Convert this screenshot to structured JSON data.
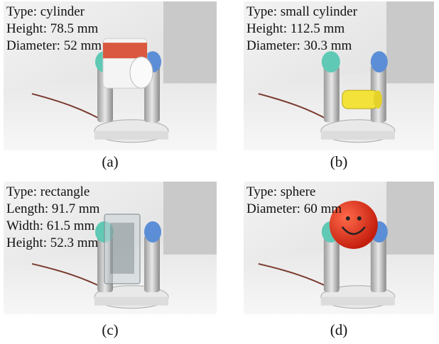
{
  "panels": [
    {
      "label": "(a)",
      "lines": [
        "Type: cylinder",
        "Height: 78.5 mm",
        "Diameter: 52 mm"
      ]
    },
    {
      "label": "(b)",
      "lines": [
        "Type: small cylinder",
        "Height: 112.5 mm",
        "Diameter: 30.3 mm"
      ]
    },
    {
      "label": "(c)",
      "lines": [
        "Type: rectangle",
        "Length: 91.7 mm",
        "Width: 61.5 mm",
        "Height: 52.3 mm"
      ]
    },
    {
      "label": "(d)",
      "lines": [
        "Type: sphere",
        "Diameter: 60 mm"
      ]
    }
  ]
}
